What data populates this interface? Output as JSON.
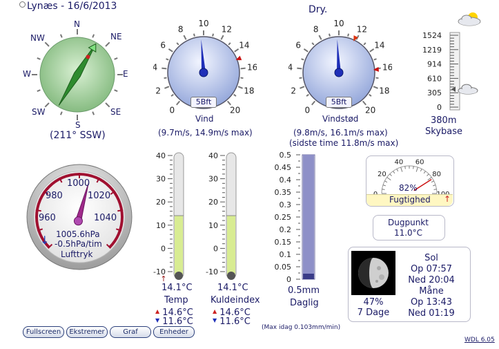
{
  "header": {
    "station_title": "Lynæs - 16/6/2013",
    "condition": "Dry."
  },
  "compass": {
    "labels": {
      "n": "N",
      "ne": "NE",
      "e": "E",
      "se": "SE",
      "s": "S",
      "sw": "SW",
      "w": "W",
      "nw": "NW"
    },
    "direction_text": "(211° SSW)",
    "direction_deg": 211
  },
  "wind": {
    "dial_numbers": [
      "0",
      "2",
      "4",
      "6",
      "8",
      "10",
      "12",
      "14",
      "16",
      "18",
      "20"
    ],
    "beaufort": "5Bft",
    "label": "Vind",
    "detail": "(9.7m/s, 14.9m/s max)"
  },
  "gust": {
    "dial_numbers": [
      "0",
      "2",
      "4",
      "6",
      "8",
      "10",
      "12",
      "14",
      "16",
      "18",
      "20"
    ],
    "beaufort": "5Bft",
    "label": "Vindstød",
    "detail_1": "(9.8m/s, 16.1m/s max)",
    "detail_2": "(sidste time 11.8m/s max)"
  },
  "cloudbase": {
    "scale": [
      "1524",
      "1219",
      "914",
      "610",
      "305",
      "0"
    ],
    "value": "380m",
    "label": "Skybase"
  },
  "barometer": {
    "scale": [
      "960",
      "980",
      "1000",
      "1020",
      "1040"
    ],
    "value": "1005.6hPa",
    "trend": "-0.5hPa/tim",
    "label": "Lufttryk",
    "pressure": 1005.6
  },
  "temp": {
    "scale": [
      "40",
      "30",
      "20",
      "10",
      "0",
      "-10"
    ],
    "value": "14.1°C",
    "label": "Temp",
    "high": "14.6°C",
    "low": "11.6°C",
    "level_c": 14.1
  },
  "windchill": {
    "scale": [
      "40",
      "30",
      "20",
      "10",
      "0",
      "-10"
    ],
    "value": "14.1°C",
    "label": "Kuldeindex",
    "high": "14.6°C",
    "low": "11.6°C",
    "level_c": 14.1
  },
  "rain": {
    "scale": [
      "0.5",
      "0.45",
      "0.4",
      "0.35",
      "0.3",
      "0.25",
      "0.2",
      "0.15",
      "0.1",
      "0.05",
      "0"
    ],
    "value": "0.5mm",
    "label": "Daglig",
    "max_rate": "(Max idag 0.103mm/min)",
    "level_mm": 0.5
  },
  "humidity": {
    "scale": [
      "0",
      "20",
      "40",
      "60",
      "80",
      "100"
    ],
    "value": "82%",
    "label": "Fugtighed",
    "percent": 82
  },
  "dewpoint": {
    "label": "Dugpunkt",
    "value": "11.0°C"
  },
  "astro": {
    "moon_percent": "47%",
    "moon_age": "7 Dage",
    "sun_label": "Sol",
    "sunrise": "Op 07:57",
    "sunset": "Ned 20:04",
    "moon_label": "Måne",
    "moonrise": "Op 13:43",
    "moonset": "Ned 01:19"
  },
  "buttons": {
    "fullscreen": "Fullscreen",
    "extremes": "Ekstremer",
    "graph": "Graf",
    "units": "Enheder"
  },
  "version": "WDL 6.05",
  "colors": {
    "text": "#1a1a66",
    "needle_blue": "#1f2fb8",
    "needle_red": "#cc1111",
    "mercury": "#d8ec92",
    "rain_fill": "#8e90c8",
    "baro_ring": "#a01030"
  }
}
